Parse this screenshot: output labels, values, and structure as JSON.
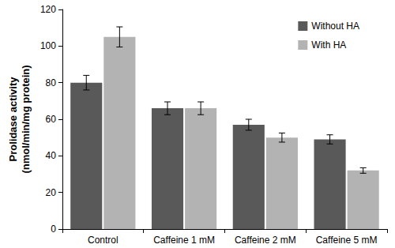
{
  "chart_data": {
    "type": "bar",
    "y_label": "Prolidase activity\n(nmol/min/mg protein)",
    "categories": [
      "Control",
      "Caffeine 1 mM",
      "Caffeine 2 mM",
      "Caffeine 5 mM"
    ],
    "series": [
      {
        "name": "Without HA",
        "color": "#595959",
        "values": [
          80,
          66,
          57,
          49
        ],
        "errors": [
          4,
          3.5,
          3,
          2.5
        ]
      },
      {
        "name": "With HA",
        "color": "#b3b3b3",
        "values": [
          105,
          66,
          50,
          32
        ],
        "errors": [
          5.5,
          3.5,
          2.5,
          1.5
        ]
      }
    ],
    "ylim": [
      0,
      120
    ],
    "yticks": [
      0,
      20,
      40,
      60,
      80,
      100,
      120
    ],
    "grid": false,
    "legend": "upper right"
  }
}
